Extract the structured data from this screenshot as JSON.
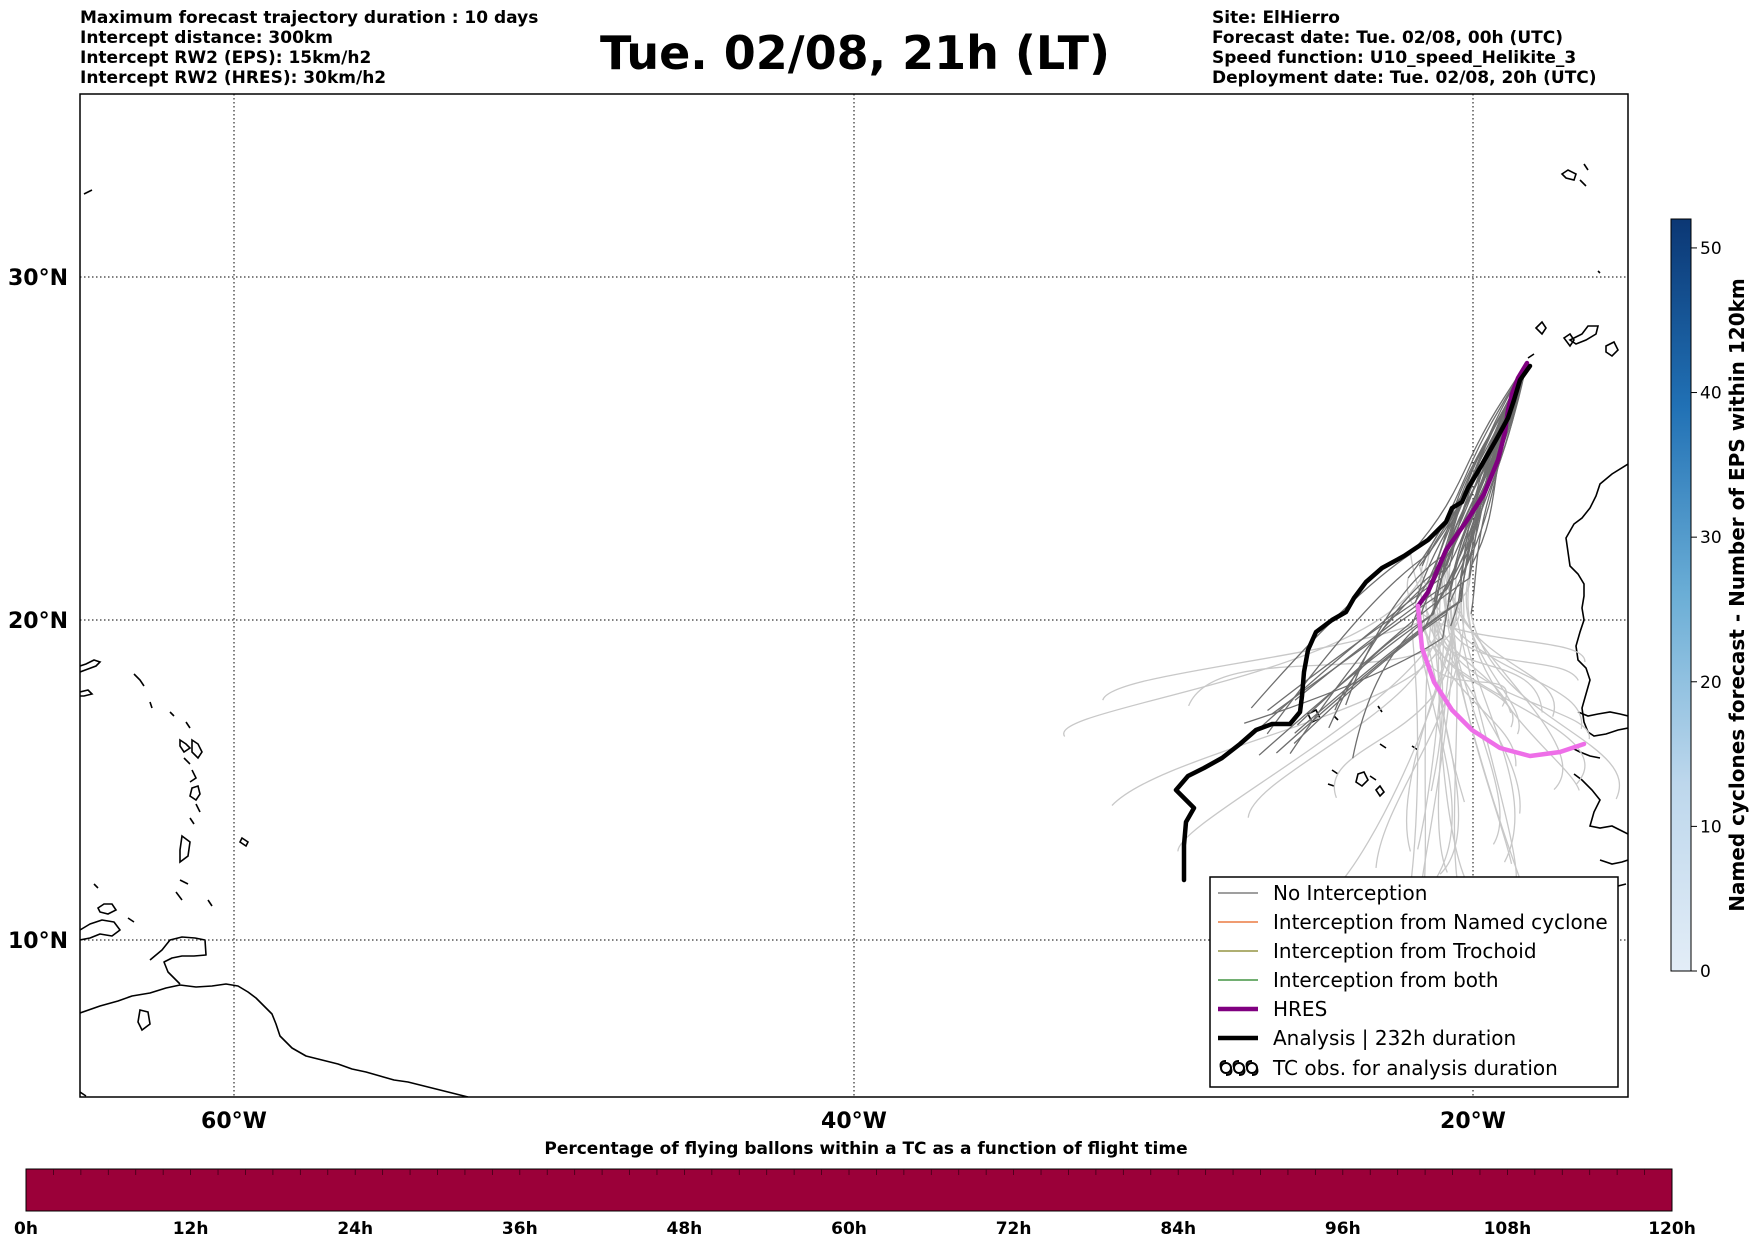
{
  "header": {
    "title": "Tue. 02/08, 21h (LT)",
    "left_info": [
      "Maximum forecast trajectory duration : 10 days",
      "Intercept distance: 300km",
      "Intercept RW2 (EPS):  15km/h2",
      "Intercept RW2 (HRES): 30km/h2"
    ],
    "right_info": [
      "Site: ElHierro",
      "Forecast date: Tue. 02/08, 00h (UTC)",
      "Speed function: U10_speed_Helikite_3",
      "Deployment date: Tue. 02/08, 20h (UTC)"
    ]
  },
  "map": {
    "lat_labels": [
      "30°N",
      "20°N",
      "10°N"
    ],
    "lon_labels": [
      "60°W",
      "40°W",
      "20°W"
    ],
    "gridlines": "dotted",
    "legend": {
      "placement": "lower-right",
      "items": [
        {
          "label": "No Interception",
          "color": "#666666",
          "style": "thin"
        },
        {
          "label": "Interception from Named cyclone",
          "color": "#e8601c",
          "style": "thin"
        },
        {
          "label": "Interception from Trochoid",
          "color": "#7f7f1f",
          "style": "thin"
        },
        {
          "label": "Interception from both",
          "color": "#1f7f1f",
          "style": "thin"
        },
        {
          "label": "HRES",
          "color": "#800080",
          "style": "thick"
        },
        {
          "label": "Analysis | 232h duration",
          "color": "#000000",
          "style": "thick"
        },
        {
          "label": "TC obs. for analysis duration",
          "color": "#000000",
          "style": "symbol"
        }
      ]
    },
    "colors": {
      "eps_no_interception_early": "#6e6e6e",
      "eps_no_interception_late": "#c8c8c8",
      "hres_early": "#800080",
      "hres_late": "#ee6ee8",
      "analysis": "#000000"
    }
  },
  "colorbar": {
    "title": "Named cyclones forecast - Number of EPS within 120km",
    "ticks": [
      "0",
      "10",
      "20",
      "30",
      "40",
      "50"
    ],
    "min": 0,
    "max": 52,
    "color_low": "#e3edf7",
    "color_high": "#0b3774"
  },
  "percent_bar": {
    "title": "Percentage of flying ballons within a TC as a function of flight time",
    "ticks": [
      "0h",
      "12h",
      "24h",
      "36h",
      "48h",
      "60h",
      "72h",
      "84h",
      "96h",
      "108h",
      "120h"
    ],
    "fill_color": "#9b0039"
  }
}
